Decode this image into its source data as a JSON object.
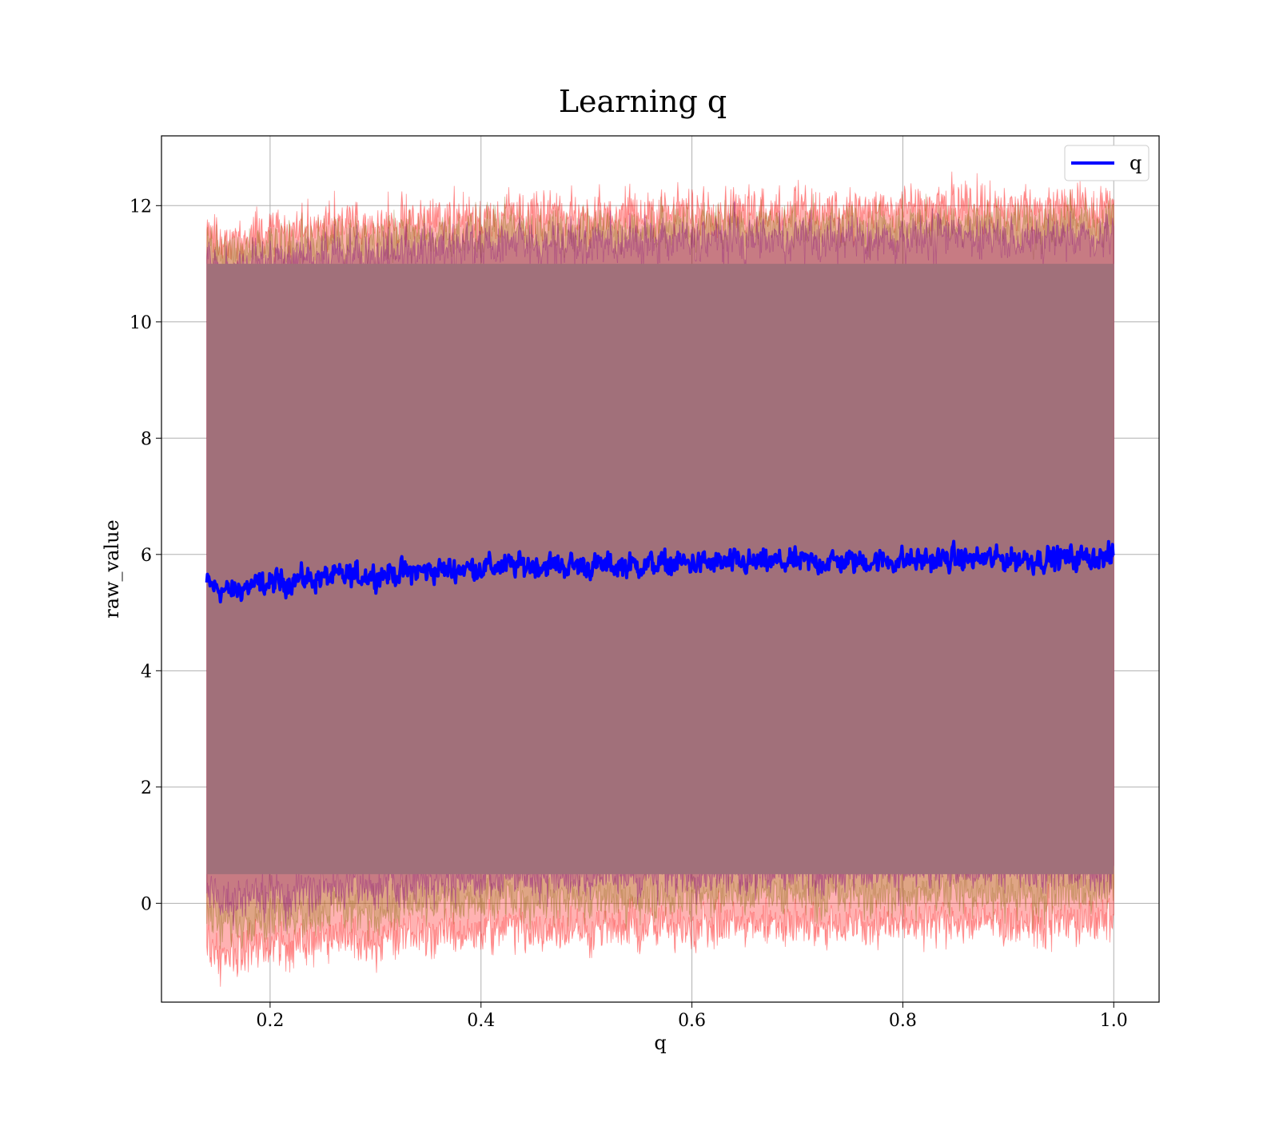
{
  "chart_data": {
    "type": "line",
    "title": "Learning q",
    "xlabel": "q",
    "ylabel": "raw_value",
    "xlim": [
      0.097,
      1.043
    ],
    "ylim": [
      -1.7,
      13.2
    ],
    "x_ticks": [
      0.2,
      0.4,
      0.6,
      0.8,
      1.0
    ],
    "x_tick_labels": [
      "0.2",
      "0.4",
      "0.6",
      "0.8",
      "1.0"
    ],
    "y_ticks": [
      0,
      2,
      4,
      6,
      8,
      10,
      12
    ],
    "y_tick_labels": [
      "0",
      "2",
      "4",
      "6",
      "8",
      "10",
      "12"
    ],
    "grid": true,
    "legend": {
      "position": "top-right",
      "entries": [
        {
          "label": "q",
          "color": "#0000ff"
        }
      ]
    },
    "x_range": [
      0.14,
      1.0
    ],
    "series": [
      {
        "name": "q",
        "color": "#0000ff",
        "x": [
          0.14,
          0.16,
          0.18,
          0.2,
          0.22,
          0.25,
          0.3,
          0.35,
          0.4,
          0.45,
          0.5,
          0.55,
          0.6,
          0.65,
          0.7,
          0.75,
          0.8,
          0.85,
          0.9,
          0.95,
          1.0
        ],
        "y": [
          5.5,
          5.35,
          5.45,
          5.5,
          5.55,
          5.6,
          5.65,
          5.72,
          5.78,
          5.82,
          5.8,
          5.82,
          5.85,
          5.85,
          5.87,
          5.88,
          5.9,
          5.92,
          5.92,
          5.93,
          5.95
        ],
        "noise_amplitude": 0.28
      }
    ],
    "bands": [
      {
        "name": "",
        "color": "#8b3a4a",
        "upper": [
          11.0,
          11.0
        ],
        "lower": [
          0.5,
          0.5
        ],
        "note": ""
      }
    ]
  }
}
